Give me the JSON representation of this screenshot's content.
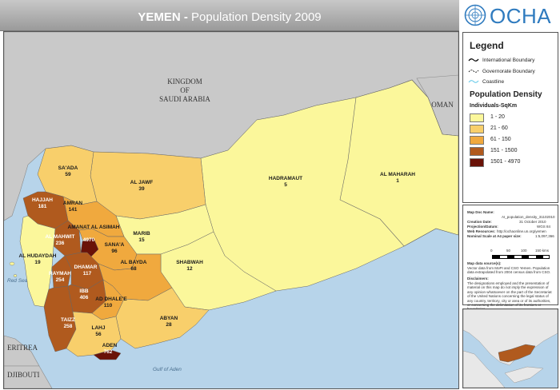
{
  "header": {
    "title_bold": "YEMEN -",
    "title_rest": " Population Density 2009"
  },
  "logo": {
    "text": "OCHA"
  },
  "map": {
    "countries": {
      "saudi_line1": "KINGDOM",
      "saudi_line2": "OF",
      "saudi_line3": "SAUDI ARABIA",
      "oman": "OMAN",
      "eritrea": "ERITREA",
      "djibouti": "DJIBOUTI"
    },
    "seas": {
      "red_sea": "Red Sea",
      "gulf_of_aden": "Gulf of Aden"
    },
    "governorates": [
      {
        "name": "SA'ADA",
        "value": "59",
        "density_class": "21 - 60"
      },
      {
        "name": "AL JAWF",
        "value": "39",
        "density_class": "21 - 60"
      },
      {
        "name": "HADRAMAUT",
        "value": "5",
        "density_class": "1 - 20"
      },
      {
        "name": "AL MAHARAH",
        "value": "1",
        "density_class": "1 - 20"
      },
      {
        "name": "HAJJAH",
        "value": "181",
        "density_class": "151 - 1500"
      },
      {
        "name": "AMRAN",
        "value": "141",
        "density_class": "61 - 150"
      },
      {
        "name": "AMANAT AL ASIMAH",
        "value": "4970",
        "density_class": "1501 - 4970"
      },
      {
        "name": "AL MAHWIT",
        "value": "236",
        "density_class": "151 - 1500"
      },
      {
        "name": "SANA'A",
        "value": "96",
        "density_class": "61 - 150"
      },
      {
        "name": "MARIB",
        "value": "15",
        "density_class": "1 - 20"
      },
      {
        "name": "AL HUDAYDAH",
        "value": "19",
        "density_class": "1 - 20"
      },
      {
        "name": "DHAMAR",
        "value": "117",
        "density_class": "61 - 150"
      },
      {
        "name": "RAYMAH",
        "value": "254",
        "density_class": "151 - 1500"
      },
      {
        "name": "AL BAYDA",
        "value": "68",
        "density_class": "61 - 150"
      },
      {
        "name": "SHABWAH",
        "value": "12",
        "density_class": "1 - 20"
      },
      {
        "name": "IBB",
        "value": "406",
        "density_class": "151 - 1500"
      },
      {
        "name": "AD DHALE'E",
        "value": "110",
        "density_class": "61 - 150"
      },
      {
        "name": "ABYAN",
        "value": "28",
        "density_class": "21 - 60"
      },
      {
        "name": "TAIZZ",
        "value": "258",
        "density_class": "151 - 1500"
      },
      {
        "name": "LAHJ",
        "value": "56",
        "density_class": "21 - 60"
      },
      {
        "name": "ADEN",
        "value": "762",
        "density_class": "151 - 1500"
      }
    ]
  },
  "legend": {
    "title": "Legend",
    "lines": [
      {
        "label": "International Boundary",
        "icon": "international-boundary-icon"
      },
      {
        "label": "Governorate Boundary",
        "icon": "governorate-boundary-icon"
      },
      {
        "label": "Coastline",
        "icon": "coastline-icon"
      }
    ],
    "density_title": "Population Density",
    "density_unit": "Individuals-SqKm",
    "classes": [
      {
        "label": "1 - 20",
        "color": "#fbf79b"
      },
      {
        "label": "21 - 60",
        "color": "#f8cf6b"
      },
      {
        "label": "61 - 150",
        "color": "#f0a93e"
      },
      {
        "label": "151 - 1500",
        "color": "#b05a1e"
      },
      {
        "label": "1501 - 4970",
        "color": "#6a1208"
      }
    ]
  },
  "info": {
    "doc_name_label": "Map Doc Name:",
    "doc_name_value": "AI_population_density_31102010",
    "creation_label": "Creation Date:",
    "creation_value": "31 October 2010",
    "projection_label": "Projection/Datum:",
    "projection_value": "WGS 84",
    "web_label": "Web Resources:",
    "web_value": "http://ochaonline.un.org/yemen",
    "scale_label": "Nominal Scale at A4 paper size:",
    "scale_value": "1:5,097,366",
    "scale_ticks": [
      "0",
      "50",
      "100",
      "150 kms"
    ],
    "sources_title": "Map data source(s):",
    "sources_text": "Vector data from MoPI and CSO Yemen. Population data extrapolated from 2004 census data from CSO.",
    "disclaimer_title": "Disclaimers:",
    "disclaimer_text": "The designations employed and the presentation of material on this map do not imply the expression of any opinion whatsoever on the part of the Secretariat of the United Nations concerning the legal status of any country, territory, city or area or of its authorities, or concerning the delimitation of its frontiers or boundaries."
  }
}
